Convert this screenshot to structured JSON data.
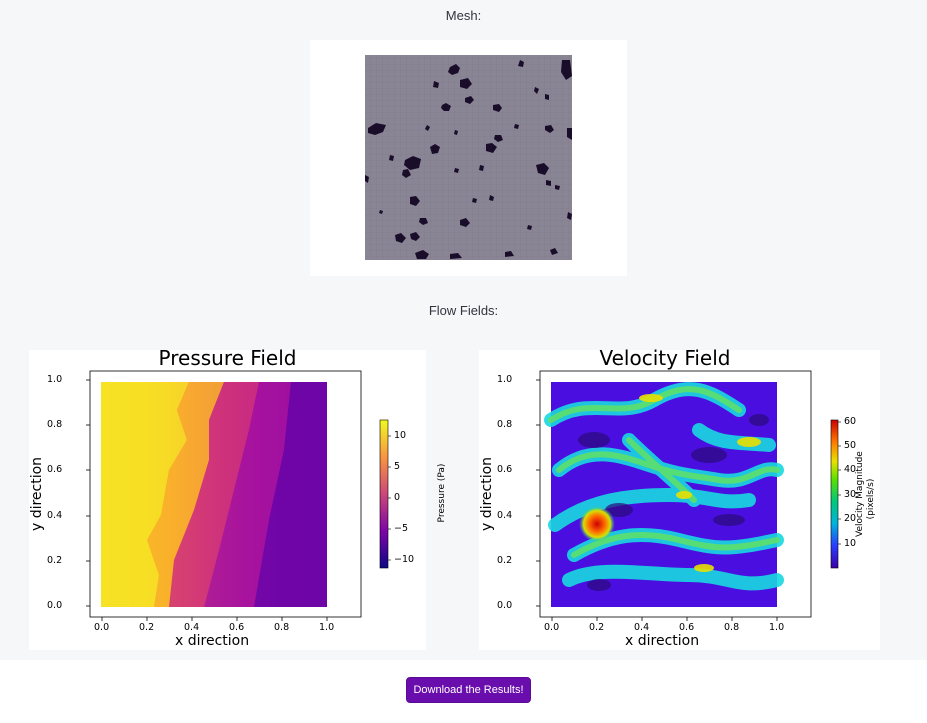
{
  "mesh_section": {
    "label": "Mesh:"
  },
  "flow_section": {
    "label": "Flow Fields:"
  },
  "pressure_plot": {
    "title": "Pressure Field",
    "xlabel": "x direction",
    "ylabel": "y direction",
    "x_ticks": [
      "0.0",
      "0.2",
      "0.4",
      "0.6",
      "0.8",
      "1.0"
    ],
    "y_ticks": [
      "0.0",
      "0.2",
      "0.4",
      "0.6",
      "0.8",
      "1.0"
    ],
    "colorbar_label": "Pressure (Pa)",
    "colorbar_ticks": [
      "10",
      "5",
      "0",
      "−5",
      "−10"
    ],
    "colormap": "plasma"
  },
  "velocity_plot": {
    "title": "Velocity Field",
    "xlabel": "x direction",
    "ylabel": "y direction",
    "x_ticks": [
      "0.0",
      "0.2",
      "0.4",
      "0.6",
      "0.8",
      "1.0"
    ],
    "y_ticks": [
      "0.0",
      "0.2",
      "0.4",
      "0.6",
      "0.8",
      "1.0"
    ],
    "colorbar_label_line1": "Velocity Magnitude",
    "colorbar_label_line2": "(pixels/s)",
    "colorbar_ticks": [
      "60",
      "50",
      "40",
      "30",
      "20",
      "10"
    ],
    "colormap": "nipy_spectral"
  },
  "actions": {
    "download_label": "Download the Results!"
  },
  "colors": {
    "accent": "#6a0dad",
    "page_bg": "#f6f7f9",
    "mesh_bg": "#8a8594",
    "obstacle": "#1a0d2a"
  }
}
